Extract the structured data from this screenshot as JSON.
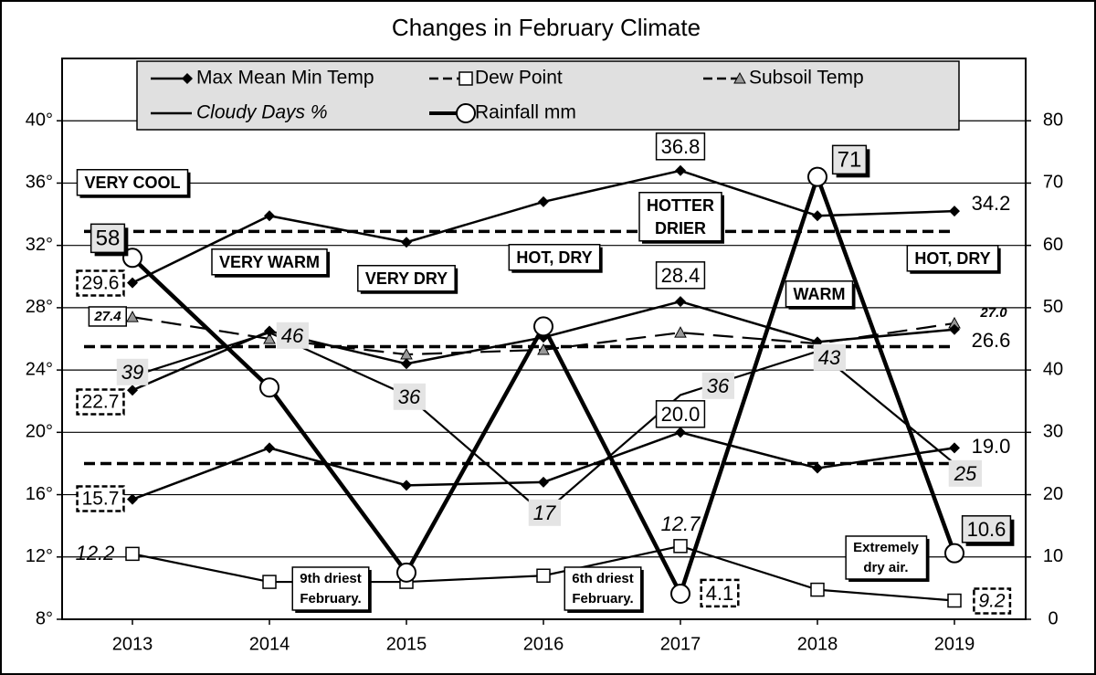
{
  "chart_data": {
    "type": "line",
    "title": "Changes in February Climate",
    "categories": [
      "2013",
      "2014",
      "2015",
      "2016",
      "2017",
      "2018",
      "2019"
    ],
    "ylim": [
      8,
      44
    ],
    "yticks": [
      {
        "value": 8,
        "label": "8°"
      },
      {
        "value": 12,
        "label": "12°"
      },
      {
        "value": 16,
        "label": "16°"
      },
      {
        "value": 20,
        "label": "20°"
      },
      {
        "value": 24,
        "label": "24°"
      },
      {
        "value": 28,
        "label": "28°"
      },
      {
        "value": 32,
        "label": "32°"
      },
      {
        "value": 36,
        "label": "36°"
      },
      {
        "value": 40,
        "label": "40°"
      }
    ],
    "y2lim": [
      0,
      90
    ],
    "y2ticks": [
      0,
      10,
      20,
      30,
      40,
      50,
      60,
      70,
      80
    ],
    "grid": true,
    "series": [
      {
        "name": "Max Mean Min Temp",
        "color": "#000000",
        "marker": "diamond",
        "lines": [
          {
            "values": [
              29.6,
              33.9,
              32.2,
              34.8,
              36.8,
              33.9,
              34.2
            ],
            "value_labels": [
              "29.6",
              null,
              null,
              null,
              "36.8",
              null,
              "34.2"
            ]
          },
          {
            "values": [
              22.7,
              26.5,
              24.4,
              26.1,
              28.4,
              25.8,
              26.6
            ],
            "value_labels": [
              "22.7",
              null,
              null,
              null,
              "28.4",
              null,
              "26.6"
            ]
          },
          {
            "values": [
              15.7,
              19.0,
              16.6,
              16.8,
              20.0,
              17.7,
              19.0
            ],
            "value_labels": [
              "15.7",
              null,
              null,
              null,
              "20.0",
              null,
              "19.0"
            ]
          }
        ]
      },
      {
        "name": "Dew Point",
        "color": "#000000",
        "marker": "square",
        "values": [
          12.2,
          10.4,
          10.4,
          10.8,
          12.7,
          9.9,
          9.2
        ],
        "value_labels": [
          "12.2",
          null,
          null,
          null,
          "12.7",
          null,
          "9.2"
        ]
      },
      {
        "name": "Subsoil Temp",
        "color": "#000000",
        "marker": "triangle",
        "dashed": true,
        "values": [
          27.4,
          26.0,
          25.0,
          25.3,
          26.4,
          25.7,
          27.0
        ],
        "value_labels": [
          "27.4",
          null,
          null,
          null,
          null,
          null,
          "27.0"
        ]
      },
      {
        "name": "Cloudy Days %",
        "color": "#000000",
        "axis": "y2",
        "values": [
          39,
          46,
          36,
          17,
          36,
          43,
          25
        ]
      },
      {
        "name": "Rainfall mm",
        "color": "#000000",
        "marker": "circle",
        "axis": "y2",
        "values": [
          58,
          37.2,
          7.5,
          47,
          4.1,
          71,
          10.6
        ],
        "value_labels": [
          "58",
          null,
          null,
          null,
          "4.1",
          "71",
          "10.6"
        ]
      }
    ],
    "reference_lines": [
      32.9,
      25.5,
      18.0
    ],
    "annotations": [
      [
        "VERY COOL"
      ],
      [
        "VERY WARM"
      ],
      [
        "VERY DRY"
      ],
      [
        "HOT, DRY"
      ],
      [
        "HOTTER",
        "DRIER"
      ],
      [
        "WARM"
      ],
      [
        "HOT, DRY"
      ],
      [
        "9th driest",
        "February."
      ],
      [
        "6th driest",
        "February."
      ],
      [
        "Extremely",
        "dry air."
      ]
    ]
  }
}
